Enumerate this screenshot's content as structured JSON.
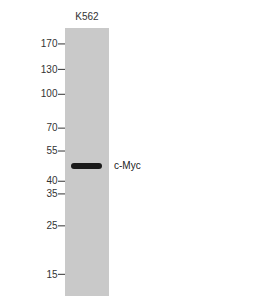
{
  "chart_data": {
    "type": "western_blot",
    "categories": [
      "K562"
    ],
    "values": [
      47
    ],
    "color": "#1a1a1a",
    "log": "y",
    "ylim": [
      12,
      200
    ],
    "yticks": [
      170,
      130,
      100,
      70,
      55,
      40,
      35,
      25,
      15
    ],
    "annotations": [
      {
        "text": "c-Myc",
        "y": 47
      }
    ]
  }
}
